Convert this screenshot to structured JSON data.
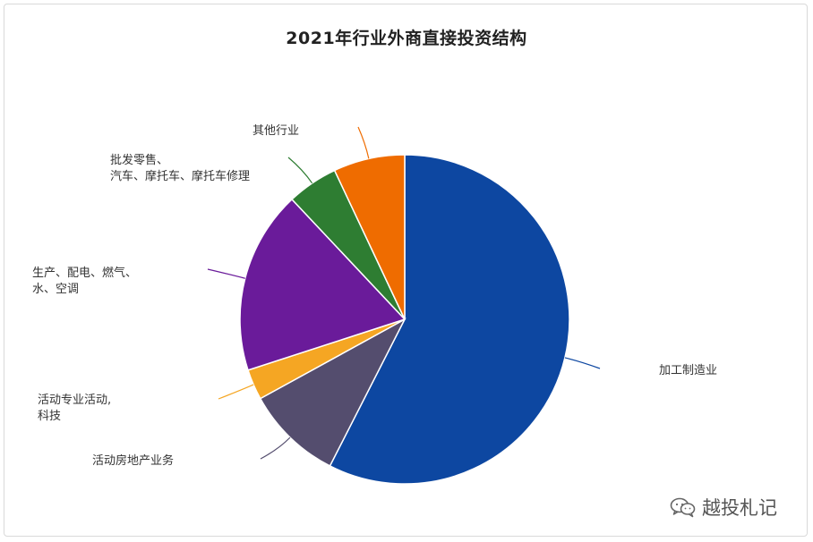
{
  "chart_data": {
    "type": "pie",
    "title": "2021年行业外商直接投资结构",
    "slices": [
      {
        "label": "加工制造业",
        "value": 57.5,
        "color": "#0d47a1"
      },
      {
        "label": "活动房地产业务",
        "value": 9.5,
        "color": "#544d6e"
      },
      {
        "label": "活动专业活动,\n科技",
        "value": 3.0,
        "color": "#f5a623"
      },
      {
        "label": "生产、配电、燃气、\n水、空调",
        "value": 18.0,
        "color": "#6a1b9a"
      },
      {
        "label": "批发零售、\n汽车、摩托车、摩托车修理",
        "value": 5.0,
        "color": "#2e7d32"
      },
      {
        "label": "其他行业",
        "value": 7.0,
        "color": "#ef6c00"
      }
    ],
    "legend": "none",
    "start_angle": "12 o'clock, clockwise"
  },
  "watermark": {
    "text": "越投札记",
    "icon": "wechat-icon"
  }
}
